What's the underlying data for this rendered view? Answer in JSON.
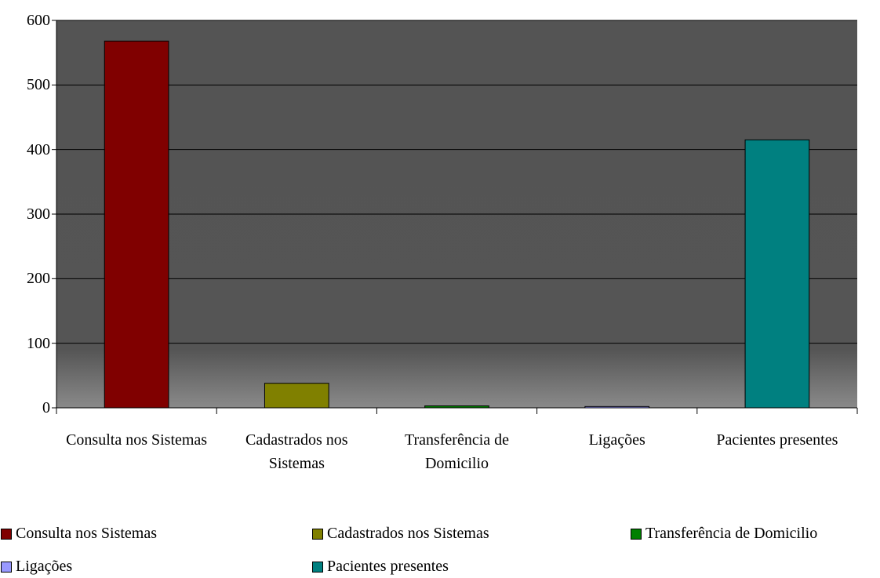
{
  "chart_data": {
    "type": "bar",
    "categories": [
      "Consulta nos Sistemas",
      "Cadastrados nos Sistemas",
      "Transferência de Domicilio",
      "Ligações",
      "Pacientes presentes"
    ],
    "values": [
      568,
      38,
      3,
      2,
      415
    ],
    "colors": [
      "#800000",
      "#808000",
      "#008000",
      "#9999ff",
      "#008080"
    ],
    "ylim": [
      0,
      600
    ],
    "yticks": [
      0,
      100,
      200,
      300,
      400,
      500,
      600
    ],
    "grid": true
  }
}
